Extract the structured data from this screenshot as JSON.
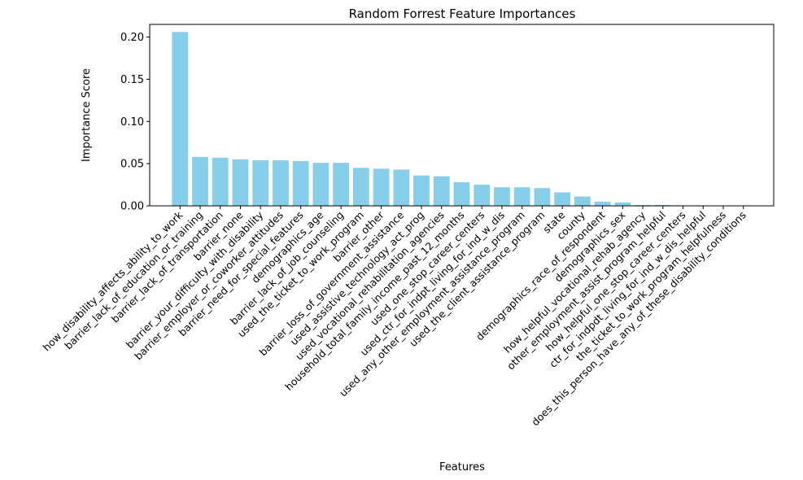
{
  "chart_data": {
    "type": "bar",
    "title": "Random Forrest Feature Importances",
    "xlabel": "Features",
    "ylabel": "Importance Score",
    "ylim": [
      0,
      0.215
    ],
    "yticks": [
      0.0,
      0.05,
      0.1,
      0.15,
      0.2
    ],
    "ytick_labels": [
      "0.00",
      "0.05",
      "0.10",
      "0.15",
      "0.20"
    ],
    "bar_color": "#87CEEB",
    "grid": false,
    "legend": "none",
    "categories": [
      "how_disability_affects_ability_to_work",
      "barrier_lack_of_education_or_training",
      "barrier_lack_of_transportation",
      "barrier_none",
      "barrier_your_difficulty_with_disability",
      "barrier_employer_or_coworker_attitudes",
      "barrier_need_for_special_features",
      "demographics_age",
      "barrier_lack_of_job_counseling",
      "used_the_ticket_to_work_program",
      "barrier_other",
      "barrier_loss_of_government_assistance",
      "used_assistive_technology_act_prog",
      "used_vocational_rehabilitation_agencies",
      "household_total_family_income_past_12_months",
      "used_one_stop_career_centers",
      "used_ctr_for_indpt_living_for_ind_w_dis",
      "used_any_other_employment_assistance_program",
      "used_the_client_assistance_program",
      "state",
      "county",
      "demographics_race_of_respondent",
      "demographics_sex",
      "how_helpful_vocational_rehab_agency",
      "other_employment_assist_program_helpful",
      "how_helpful_one_stop_career_centers",
      "ctr_for_indpdt_living_for_ind_w_dis_helpful",
      "the_ticket_to_work_program_helpfulness",
      "does_this_person_have_any_of_these_disability_conditions"
    ],
    "values": [
      0.206,
      0.058,
      0.057,
      0.055,
      0.054,
      0.054,
      0.053,
      0.051,
      0.051,
      0.045,
      0.044,
      0.043,
      0.036,
      0.035,
      0.028,
      0.025,
      0.022,
      0.022,
      0.021,
      0.016,
      0.011,
      0.005,
      0.004,
      0.001,
      0.001,
      0.0005,
      0.0003,
      0.0002,
      0.0001
    ]
  }
}
